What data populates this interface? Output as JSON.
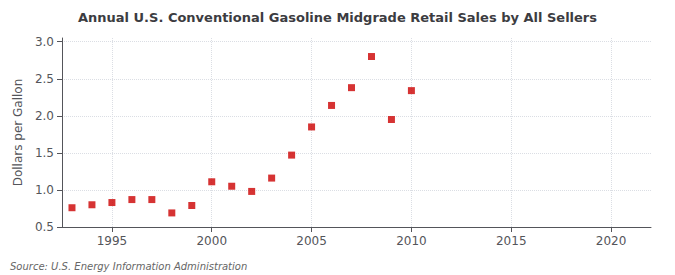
{
  "chart_data": {
    "type": "scatter",
    "title": "Annual U.S. Conventional Gasoline Midgrade Retail Sales by All Sellers",
    "ylabel": "Dollars per Gallon",
    "annotations": [
      "Source: U.S. Energy Information Administration"
    ],
    "x": [
      1993,
      1994,
      1995,
      1996,
      1997,
      1998,
      1999,
      2000,
      2001,
      2002,
      2003,
      2004,
      2005,
      2006,
      2007,
      2008,
      2009,
      2010
    ],
    "values": [
      0.76,
      0.8,
      0.83,
      0.87,
      0.87,
      0.69,
      0.79,
      1.11,
      1.05,
      0.98,
      1.16,
      1.47,
      1.85,
      2.14,
      2.38,
      2.8,
      1.95,
      2.34
    ],
    "color": "#cc0000",
    "marker": "square",
    "xlim": [
      1992.5,
      2022
    ],
    "xticks": [
      1995,
      2000,
      2005,
      2010,
      2015,
      2020
    ],
    "ylim": [
      0.5,
      3.05
    ],
    "yticks": [
      0.5,
      {
        "value": 1.0,
        "label": "1.0"
      },
      1.5,
      {
        "value": 2.0,
        "label": "2.0"
      },
      2.5,
      {
        "value": 3.0,
        "label": "3.0"
      }
    ],
    "grid": true
  }
}
